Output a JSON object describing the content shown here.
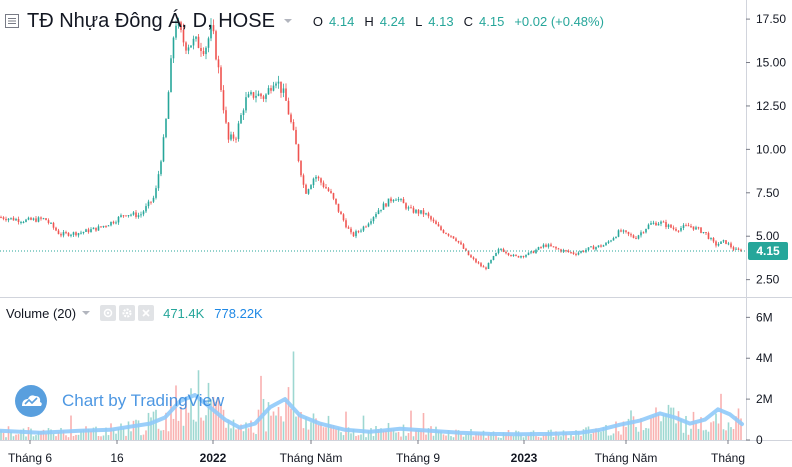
{
  "header": {
    "title": "TĐ Nhựa Đông Á, D, HOSE",
    "ohlc": [
      {
        "label": "O",
        "value": "4.14"
      },
      {
        "label": "H",
        "value": "4.24"
      },
      {
        "label": "L",
        "value": "4.13"
      },
      {
        "label": "C",
        "value": "4.15"
      }
    ],
    "change": "+0.02 (+0.48%)"
  },
  "volume_panel": {
    "title": "Volume (20)",
    "value_1": "471.4K",
    "value_2": "778.22K"
  },
  "watermark": "Chart by TradingView",
  "price_badge": "4.15",
  "colors": {
    "up": "#26a69a",
    "down": "#ef5350",
    "volume_ma": "#90caf9",
    "last_price_line": "#26a69a",
    "watermark": "#2e86de"
  },
  "chart_data": [
    {
      "type": "candlestick",
      "title": "TĐ Nhựa Đông Á, D, HOSE",
      "y_ticks": [
        "2.50",
        "5.00",
        "7.50",
        "10.00",
        "12.50",
        "15.00",
        "17.50"
      ],
      "ylim": [
        1.5,
        18.6
      ],
      "x_ticks": [
        {
          "label": "Tháng 6",
          "bold": false
        },
        {
          "label": "16",
          "bold": false
        },
        {
          "label": "2022",
          "bold": true
        },
        {
          "label": "Tháng Năm",
          "bold": false
        },
        {
          "label": "Tháng 9",
          "bold": false
        },
        {
          "label": "2023",
          "bold": true
        },
        {
          "label": "Tháng Năm",
          "bold": false
        },
        {
          "label": "Tháng",
          "bold": false
        }
      ],
      "last_price": 4.15,
      "price_path": [
        [
          0,
          6.1
        ],
        [
          25,
          5.9
        ],
        [
          45,
          6.0
        ],
        [
          60,
          5.1
        ],
        [
          80,
          5.2
        ],
        [
          100,
          5.5
        ],
        [
          115,
          5.9
        ],
        [
          125,
          6.3
        ],
        [
          140,
          6.2
        ],
        [
          155,
          7.3
        ],
        [
          165,
          11.0
        ],
        [
          175,
          17.5
        ],
        [
          185,
          16.0
        ],
        [
          195,
          16.2
        ],
        [
          205,
          15.8
        ],
        [
          212,
          17.0
        ],
        [
          220,
          14.0
        ],
        [
          228,
          10.5
        ],
        [
          236,
          10.8
        ],
        [
          245,
          12.8
        ],
        [
          255,
          13.2
        ],
        [
          265,
          13.0
        ],
        [
          275,
          14.2
        ],
        [
          285,
          13.0
        ],
        [
          295,
          10.5
        ],
        [
          305,
          7.5
        ],
        [
          315,
          8.5
        ],
        [
          330,
          7.5
        ],
        [
          340,
          6.3
        ],
        [
          352,
          5.0
        ],
        [
          365,
          5.6
        ],
        [
          378,
          6.5
        ],
        [
          395,
          7.3
        ],
        [
          410,
          6.5
        ],
        [
          425,
          6.3
        ],
        [
          440,
          5.4
        ],
        [
          455,
          4.9
        ],
        [
          470,
          3.8
        ],
        [
          485,
          3.1
        ],
        [
          500,
          4.3
        ],
        [
          515,
          3.8
        ],
        [
          530,
          4.0
        ],
        [
          545,
          4.5
        ],
        [
          560,
          4.2
        ],
        [
          575,
          4.0
        ],
        [
          590,
          4.3
        ],
        [
          605,
          4.5
        ],
        [
          620,
          5.3
        ],
        [
          635,
          4.9
        ],
        [
          650,
          5.7
        ],
        [
          660,
          5.8
        ],
        [
          675,
          5.4
        ],
        [
          690,
          5.6
        ],
        [
          705,
          5.2
        ],
        [
          715,
          4.5
        ],
        [
          725,
          4.7
        ],
        [
          735,
          4.2
        ],
        [
          742,
          4.15
        ]
      ],
      "volume_ticks": [
        "0",
        "2M",
        "4M",
        "6M"
      ],
      "volume_ylim": [
        0,
        6.8
      ],
      "volume_ma_path": [
        [
          0,
          0.45
        ],
        [
          40,
          0.35
        ],
        [
          80,
          0.45
        ],
        [
          110,
          0.5
        ],
        [
          130,
          0.65
        ],
        [
          150,
          0.8
        ],
        [
          165,
          1.1
        ],
        [
          180,
          1.9
        ],
        [
          195,
          2.2
        ],
        [
          210,
          1.6
        ],
        [
          225,
          1.0
        ],
        [
          240,
          0.6
        ],
        [
          255,
          0.8
        ],
        [
          270,
          1.6
        ],
        [
          285,
          2.0
        ],
        [
          300,
          1.2
        ],
        [
          320,
          0.8
        ],
        [
          345,
          0.5
        ],
        [
          370,
          0.4
        ],
        [
          400,
          0.55
        ],
        [
          430,
          0.45
        ],
        [
          460,
          0.35
        ],
        [
          490,
          0.3
        ],
        [
          520,
          0.28
        ],
        [
          550,
          0.3
        ],
        [
          580,
          0.35
        ],
        [
          600,
          0.5
        ],
        [
          620,
          0.75
        ],
        [
          640,
          0.95
        ],
        [
          660,
          1.3
        ],
        [
          675,
          1.1
        ],
        [
          690,
          0.8
        ],
        [
          705,
          1.0
        ],
        [
          718,
          1.5
        ],
        [
          730,
          1.25
        ],
        [
          742,
          0.78
        ]
      ]
    }
  ]
}
